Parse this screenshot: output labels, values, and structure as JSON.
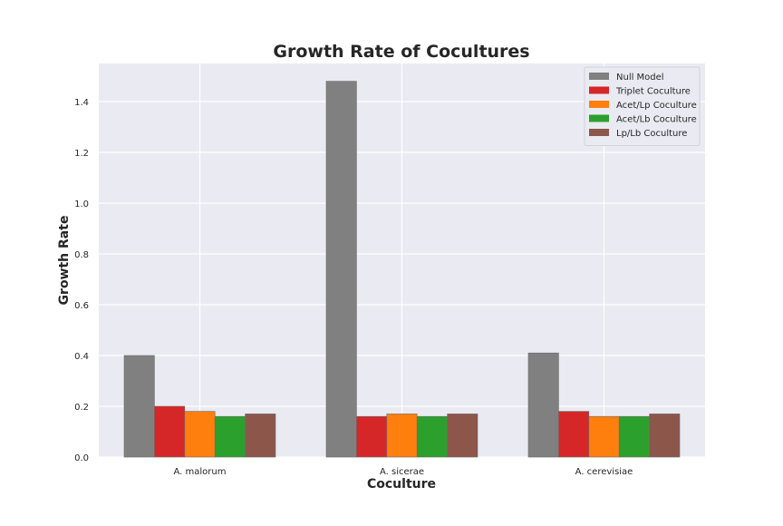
{
  "chart_data": {
    "type": "bar",
    "title": "Growth Rate of Cocultures",
    "xlabel": "Coculture",
    "ylabel": "Growth Rate",
    "categories": [
      "A. malorum",
      "A. sicerae",
      "A. cerevisiae"
    ],
    "ylim": [
      0,
      1.55
    ],
    "yticks": [
      0.0,
      0.2,
      0.4,
      0.6,
      0.8,
      1.0,
      1.2,
      1.4
    ],
    "ytick_labels": [
      "0.0",
      "0.2",
      "0.4",
      "0.6",
      "0.8",
      "1.0",
      "1.2",
      "1.4"
    ],
    "grid": true,
    "legend_position": "top-right",
    "background_color": "#eaeaf2",
    "series": [
      {
        "name": "Null Model",
        "color": "#808080",
        "values": [
          0.4,
          1.48,
          0.41
        ]
      },
      {
        "name": "Triplet Coculture",
        "color": "#d62728",
        "values": [
          0.2,
          0.16,
          0.18
        ]
      },
      {
        "name": "Acet/Lp Coculture",
        "color": "#ff7f0e",
        "values": [
          0.18,
          0.17,
          0.16
        ]
      },
      {
        "name": "Acet/Lb Coculture",
        "color": "#2ca02c",
        "values": [
          0.16,
          0.16,
          0.16
        ]
      },
      {
        "name": "Lp/Lb Coculture",
        "color": "#8c564b",
        "values": [
          0.17,
          0.17,
          0.17
        ]
      }
    ]
  }
}
